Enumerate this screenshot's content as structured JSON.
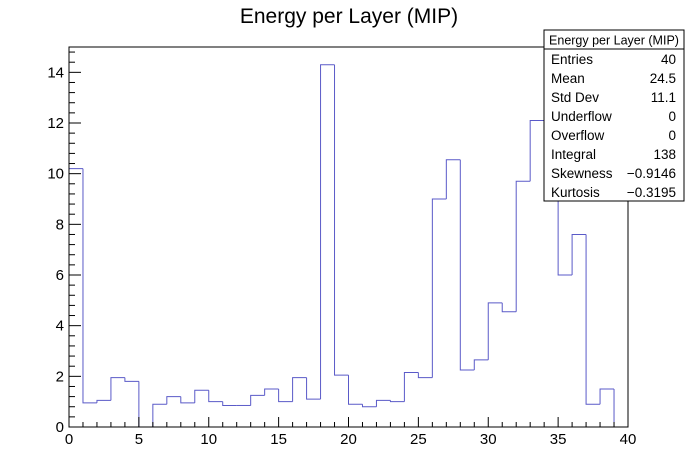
{
  "chart_data": {
    "type": "histogram",
    "title": "Energy per Layer (MIP)",
    "xlabel": "",
    "ylabel": "",
    "xlim": [
      0,
      40
    ],
    "ylim": [
      0,
      15
    ],
    "bin_width": 1,
    "x_ticks": [
      0,
      5,
      10,
      15,
      20,
      25,
      30,
      35,
      40
    ],
    "y_ticks": [
      0,
      2,
      4,
      6,
      8,
      10,
      12,
      14
    ],
    "x_tick_labels": [
      "0",
      "5",
      "10",
      "15",
      "20",
      "25",
      "30",
      "35",
      "40"
    ],
    "y_tick_labels": [
      "0",
      "2",
      "4",
      "6",
      "8",
      "10",
      "12",
      "14"
    ],
    "bin_edges_start": 0,
    "values": [
      10.2,
      0.95,
      1.05,
      1.95,
      1.8,
      0.0,
      0.9,
      1.2,
      0.95,
      1.45,
      1.0,
      0.85,
      0.85,
      1.25,
      1.5,
      1.0,
      1.95,
      1.1,
      14.3,
      2.05,
      0.9,
      0.8,
      1.05,
      1.0,
      2.15,
      1.95,
      9.0,
      10.55,
      2.25,
      2.65,
      4.9,
      4.55,
      9.7,
      12.1,
      12.1,
      6.0,
      7.6,
      0.9,
      1.5,
      0.0
    ],
    "line_color": "#5a5ac8",
    "grid": false,
    "stats_box": {
      "title": "Energy per Layer (MIP)",
      "position": "top-right",
      "rows": [
        {
          "label": "Entries",
          "value": "40"
        },
        {
          "label": "Mean",
          "value": "24.5"
        },
        {
          "label": "Std Dev",
          "value": "11.1"
        },
        {
          "label": "Underflow",
          "value": "0"
        },
        {
          "label": "Overflow",
          "value": "0"
        },
        {
          "label": "Integral",
          "value": "138"
        },
        {
          "label": "Skewness",
          "value": "−0.9146"
        },
        {
          "label": "Kurtosis",
          "value": "−0.3195"
        }
      ]
    }
  }
}
